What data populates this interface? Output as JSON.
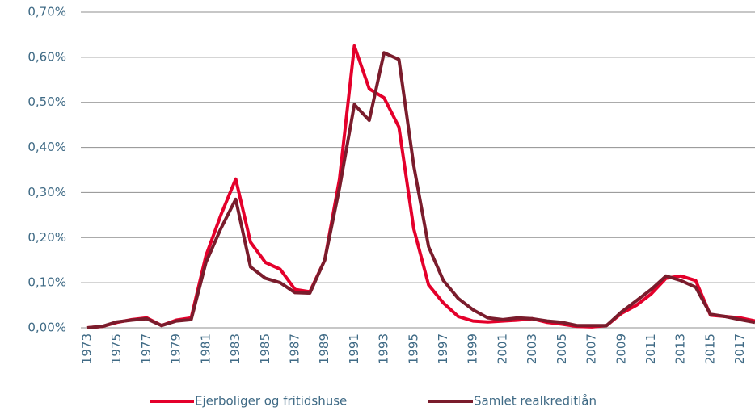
{
  "chart_data": {
    "type": "line",
    "x": [
      1973,
      1974,
      1975,
      1976,
      1977,
      1978,
      1979,
      1980,
      1981,
      1982,
      1983,
      1984,
      1985,
      1986,
      1987,
      1988,
      1989,
      1990,
      1991,
      1992,
      1993,
      1994,
      1995,
      1996,
      1997,
      1998,
      1999,
      2000,
      2001,
      2002,
      2003,
      2004,
      2005,
      2006,
      2007,
      2008,
      2009,
      2010,
      2011,
      2012,
      2013,
      2014,
      2015,
      2016,
      2017,
      2018
    ],
    "series": [
      {
        "name": "Ejerboliger og fritidshuse",
        "color": "#e4002b",
        "values": [
          0,
          0.003,
          0.012,
          0.018,
          0.022,
          0.005,
          0.017,
          0.022,
          0.16,
          0.25,
          0.33,
          0.19,
          0.145,
          0.13,
          0.085,
          0.08,
          0.15,
          0.33,
          0.625,
          0.53,
          0.51,
          0.445,
          0.22,
          0.095,
          0.055,
          0.025,
          0.015,
          0.013,
          0.015,
          0.017,
          0.02,
          0.012,
          0.008,
          0.003,
          0.002,
          0.005,
          0.032,
          0.05,
          0.075,
          0.11,
          0.115,
          0.105,
          0.028,
          0.025,
          0.022,
          0.015
        ]
      },
      {
        "name": "Samlet realkreditlån",
        "color": "#7a1c2c",
        "values": [
          0,
          0.003,
          0.013,
          0.017,
          0.02,
          0.005,
          0.015,
          0.018,
          0.145,
          0.22,
          0.285,
          0.135,
          0.11,
          0.1,
          0.078,
          0.077,
          0.15,
          0.31,
          0.495,
          0.46,
          0.61,
          0.595,
          0.36,
          0.18,
          0.105,
          0.065,
          0.04,
          0.022,
          0.018,
          0.022,
          0.02,
          0.015,
          0.012,
          0.005,
          0.005,
          0.005,
          0.035,
          0.06,
          0.085,
          0.115,
          0.105,
          0.09,
          0.03,
          0.025,
          0.018,
          0.012
        ]
      }
    ],
    "xlim": [
      1973,
      2018
    ],
    "xticks": [
      1973,
      1975,
      1977,
      1979,
      1981,
      1983,
      1985,
      1987,
      1989,
      1991,
      1993,
      1995,
      1997,
      1999,
      2001,
      2003,
      2005,
      2007,
      2009,
      2011,
      2013,
      2015,
      2017
    ],
    "ylim": [
      0,
      0.7
    ],
    "yticks": [
      {
        "value": 0,
        "label": "0,00%"
      },
      {
        "value": 0.1,
        "label": "0,10%"
      },
      {
        "value": 0.2,
        "label": "0,20%"
      },
      {
        "value": 0.3,
        "label": "0,30%"
      },
      {
        "value": 0.4,
        "label": "0,40%"
      },
      {
        "value": 0.5,
        "label": "0,50%"
      },
      {
        "value": 0.6,
        "label": "0,60%"
      },
      {
        "value": 0.7,
        "label": "0,70%"
      }
    ],
    "grid": true,
    "legend": "bottom"
  }
}
